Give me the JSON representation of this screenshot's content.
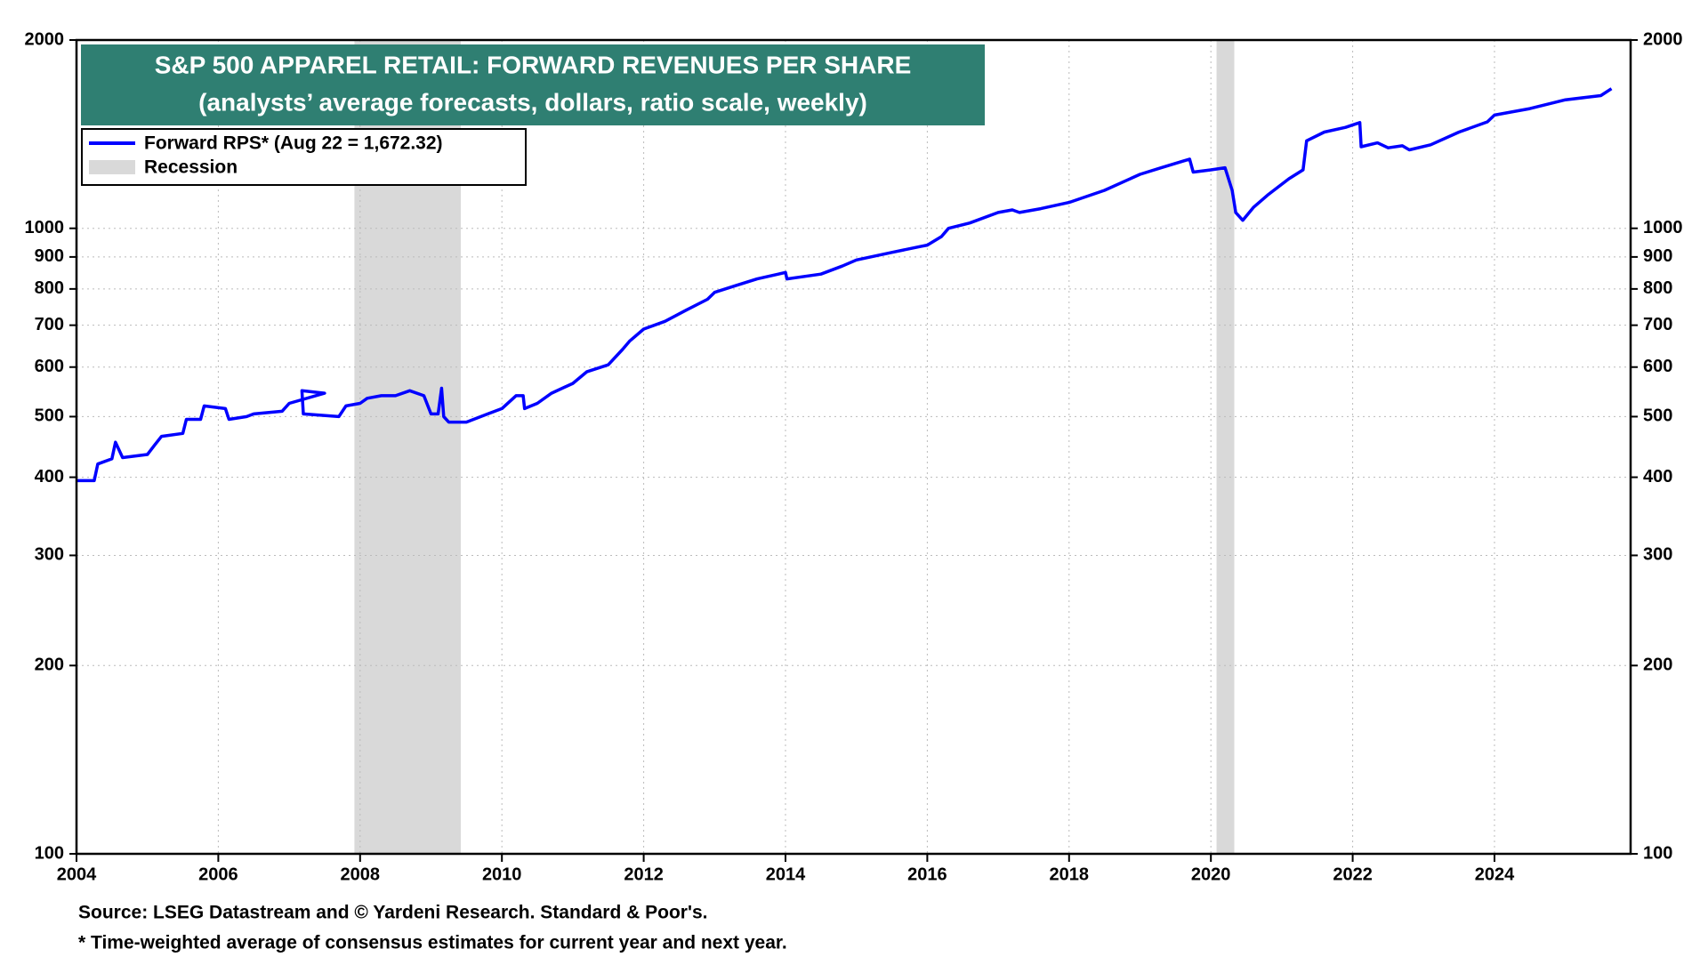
{
  "chart_data": {
    "type": "line",
    "title": "S&P 500 APPAREL RETAIL: FORWARD REVENUES PER SHARE",
    "subtitle": "(analysts’ average forecasts, dollars, ratio scale, weekly)",
    "source": "Source: LSEG Datastream and © Yardeni Research. Standard & Poor's.",
    "note": "* Time-weighted average of consensus estimates for current year and next year.",
    "x": [
      2004.0,
      2004.25,
      2004.3,
      2004.5,
      2004.55,
      2004.65,
      2005.0,
      2005.1,
      2005.2,
      2005.5,
      2005.55,
      2005.75,
      2005.8,
      2006.1,
      2006.15,
      2006.4,
      2006.5,
      2006.9,
      2007.0,
      2007.5,
      2007.18,
      2007.2,
      2007.7,
      2007.8,
      2008.0,
      2008.1,
      2008.3,
      2008.5,
      2008.7,
      2008.9,
      2009.0,
      2009.1,
      2009.15,
      2009.18,
      2009.25,
      2009.5,
      2009.8,
      2010.0,
      2010.2,
      2010.3,
      2010.32,
      2010.5,
      2010.7,
      2011.0,
      2011.2,
      2011.5,
      2011.7,
      2011.8,
      2012.0,
      2012.3,
      2012.6,
      2012.9,
      2013.0,
      2013.3,
      2013.6,
      2013.9,
      2014.0,
      2014.02,
      2014.5,
      2014.8,
      2015.0,
      2015.5,
      2015.9,
      2016.0,
      2016.2,
      2016.3,
      2016.6,
      2017.0,
      2017.2,
      2017.3,
      2017.6,
      2018.0,
      2018.5,
      2019.0,
      2019.3,
      2019.6,
      2019.7,
      2019.75,
      2020.0,
      2020.2,
      2020.3,
      2020.35,
      2020.45,
      2020.6,
      2020.8,
      2021.1,
      2021.3,
      2021.35,
      2021.6,
      2021.9,
      2022.1,
      2022.12,
      2022.35,
      2022.5,
      2022.7,
      2022.8,
      2023.1,
      2023.5,
      2023.9,
      2024.0,
      2024.5,
      2025.0,
      2025.3,
      2025.5,
      2025.65
    ],
    "series": [
      {
        "name": "Forward RPS* (Aug 22 = 1,672.32)",
        "color": "#0000ff",
        "values": [
          395,
          395,
          420,
          428,
          455,
          430,
          435,
          450,
          465,
          470,
          495,
          495,
          520,
          515,
          495,
          500,
          505,
          510,
          525,
          545,
          550,
          505,
          500,
          520,
          525,
          535,
          540,
          540,
          550,
          540,
          505,
          505,
          555,
          500,
          490,
          490,
          505,
          515,
          540,
          540,
          515,
          525,
          545,
          565,
          590,
          605,
          640,
          660,
          690,
          710,
          740,
          770,
          790,
          810,
          830,
          845,
          850,
          830,
          845,
          870,
          890,
          915,
          935,
          940,
          970,
          1000,
          1020,
          1060,
          1070,
          1060,
          1075,
          1100,
          1150,
          1220,
          1250,
          1280,
          1290,
          1230,
          1240,
          1250,
          1150,
          1060,
          1030,
          1080,
          1130,
          1200,
          1240,
          1380,
          1425,
          1450,
          1476,
          1350,
          1370,
          1345,
          1355,
          1335,
          1360,
          1425,
          1480,
          1517,
          1554,
          1605,
          1620,
          1630,
          1672.32
        ]
      }
    ],
    "recession_name": "Recession",
    "recessions": [
      [
        2007.92,
        2009.42
      ],
      [
        2020.08,
        2020.33
      ]
    ],
    "recession_color": "#d9d9d9",
    "xlim": [
      2004,
      2025.92
    ],
    "xticks": [
      2004,
      2006,
      2008,
      2010,
      2012,
      2014,
      2016,
      2018,
      2020,
      2022,
      2024
    ],
    "ylim": [
      100,
      2000
    ],
    "ylog": true,
    "yticks": [
      100,
      200,
      300,
      400,
      500,
      600,
      700,
      800,
      900,
      1000,
      2000
    ],
    "grid": true,
    "legend": "upper left"
  }
}
